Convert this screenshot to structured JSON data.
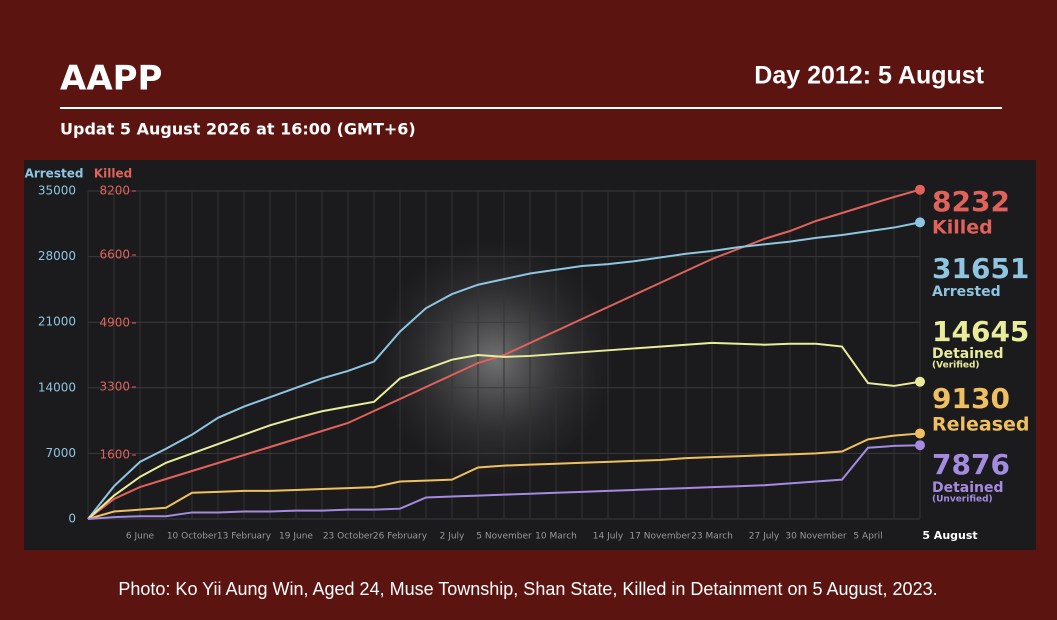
{
  "header": {
    "title": "AAPP",
    "day_label": "Day 2012: 5 August",
    "subtitle": "Updat 5 August 2026 at 16:00 (GMT+6)"
  },
  "chart_data": {
    "type": "line",
    "y_label": "Arrested",
    "y2_label": "Killed",
    "categories": [
      null,
      null,
      "6 June",
      null,
      "10 October",
      null,
      "13 February",
      null,
      "19 June",
      null,
      "23 October",
      null,
      "26 February",
      null,
      "2 July",
      null,
      "5 November",
      null,
      "10 March",
      null,
      "14 July",
      null,
      "17 November",
      null,
      "23 March",
      null,
      "27 July",
      null,
      "30 November",
      null,
      "5 April",
      null,
      "5 August"
    ],
    "ylim": [
      0,
      35000
    ],
    "yticks": [
      0,
      7000,
      14000,
      21000,
      28000,
      35000
    ],
    "y2lim": [
      0,
      8200
    ],
    "y2ticks": [
      1600,
      3300,
      4900,
      6600,
      8200
    ],
    "grid": true,
    "series": [
      {
        "name": "Killed",
        "color": "#e0625a",
        "axis": "y2",
        "values": [
          0,
          500,
          800,
          1000,
          1200,
          1400,
          1600,
          1800,
          2000,
          2200,
          2400,
          2700,
          3000,
          3300,
          3600,
          3900,
          4100,
          4400,
          4700,
          5000,
          5300,
          5600,
          5900,
          6200,
          6500,
          6750,
          7000,
          7200,
          7450,
          7650,
          7850,
          8050,
          8232
        ]
      },
      {
        "name": "Arrested",
        "color": "#8ec5e0",
        "values": [
          0,
          3500,
          6100,
          7500,
          9000,
          10800,
          12000,
          13000,
          14000,
          15000,
          15800,
          16800,
          20000,
          22500,
          24000,
          25000,
          25600,
          26200,
          26600,
          27000,
          27200,
          27500,
          27900,
          28300,
          28600,
          29000,
          29300,
          29600,
          30000,
          30300,
          30700,
          31100,
          31651
        ]
      },
      {
        "name": "Detained",
        "qualifier": "(Verified)",
        "color": "#e9ec9a",
        "values": [
          0,
          2500,
          4500,
          6000,
          7000,
          8000,
          9000,
          10000,
          10800,
          11500,
          12000,
          12500,
          15000,
          16000,
          17000,
          17500,
          17300,
          17400,
          17600,
          17800,
          18000,
          18200,
          18400,
          18600,
          18800,
          18700,
          18600,
          18700,
          18700,
          18400,
          14500,
          14200,
          14645
        ]
      },
      {
        "name": "Released",
        "color": "#f0c060",
        "values": [
          0,
          800,
          1000,
          1200,
          2800,
          2900,
          3000,
          3000,
          3100,
          3200,
          3300,
          3400,
          4000,
          4100,
          4200,
          5500,
          5700,
          5800,
          5900,
          6000,
          6100,
          6200,
          6300,
          6500,
          6600,
          6700,
          6800,
          6900,
          7000,
          7200,
          8500,
          8900,
          9130
        ]
      },
      {
        "name": "Detained",
        "qualifier": "(Unverified)",
        "color": "#a58be0",
        "values": [
          0,
          200,
          300,
          300,
          700,
          700,
          800,
          800,
          900,
          900,
          1000,
          1000,
          1100,
          2300,
          2400,
          2500,
          2600,
          2700,
          2800,
          2900,
          3000,
          3100,
          3200,
          3300,
          3400,
          3500,
          3600,
          3800,
          4000,
          4200,
          7600,
          7800,
          7876
        ]
      }
    ]
  },
  "caption": "Photo: Ko Yii Aung Win, Aged 24, Muse Township, Shan State, Killed in Detainment on 5 August, 2023."
}
